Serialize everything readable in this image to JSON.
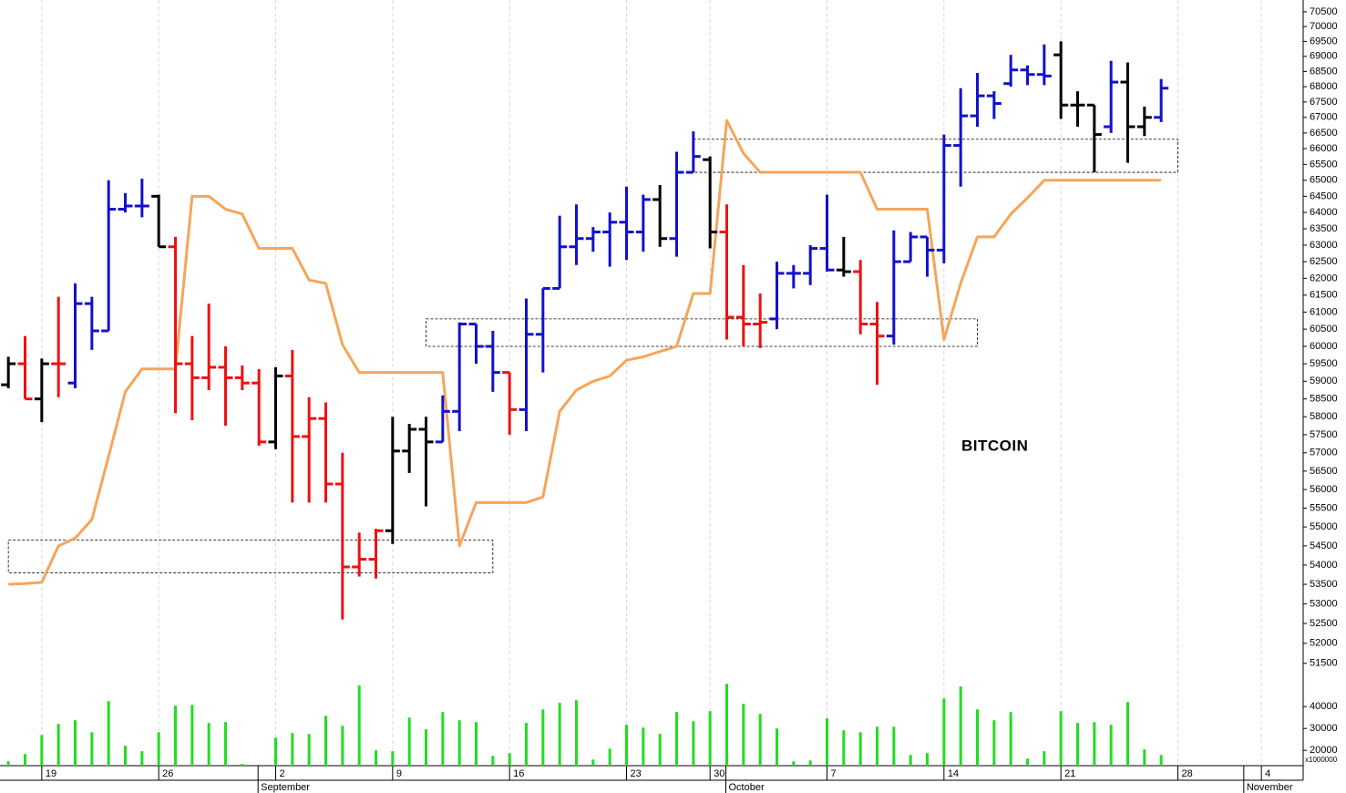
{
  "chart_data": {
    "type": "ohlc",
    "title": "BITCOIN",
    "log_scale": true,
    "ylim": [
      51000,
      70900
    ],
    "yticks": [
      51500,
      52000,
      52500,
      53000,
      53500,
      54000,
      54500,
      55000,
      55500,
      56000,
      56500,
      57000,
      57500,
      58000,
      58500,
      59000,
      59500,
      60000,
      60500,
      61000,
      61500,
      62000,
      62500,
      63000,
      63500,
      64000,
      64500,
      65000,
      65500,
      66000,
      66500,
      67000,
      67500,
      68000,
      68500,
      69000,
      69500,
      70000,
      70500
    ],
    "categories": [
      null,
      null,
      "19",
      null,
      null,
      null,
      null,
      null,
      null,
      "26",
      null,
      null,
      null,
      null,
      null,
      null,
      "2",
      null,
      null,
      null,
      null,
      null,
      null,
      "9",
      null,
      null,
      null,
      null,
      null,
      null,
      "16",
      null,
      null,
      null,
      null,
      null,
      null,
      "23",
      null,
      null,
      null,
      null,
      "30",
      null,
      null,
      null,
      null,
      null,
      null,
      "7",
      null,
      null,
      null,
      null,
      null,
      null,
      "14",
      null,
      null,
      null,
      null,
      null,
      null,
      "21",
      null,
      null,
      null,
      null,
      null,
      null,
      "28",
      null,
      null,
      null,
      null,
      "4",
      null,
      null
    ],
    "months": [
      null,
      null,
      null,
      null,
      null,
      null,
      null,
      null,
      null,
      null,
      null,
      null,
      null,
      null,
      null,
      "September",
      null,
      null,
      null,
      null,
      null,
      null,
      null,
      null,
      null,
      null,
      null,
      null,
      null,
      null,
      null,
      null,
      null,
      null,
      null,
      null,
      null,
      null,
      null,
      null,
      null,
      null,
      null,
      "October",
      null,
      null,
      null,
      null,
      null,
      null,
      null,
      null,
      null,
      null,
      null,
      null,
      null,
      null,
      null,
      null,
      null,
      null,
      null,
      null,
      null,
      null,
      null,
      null,
      null,
      null,
      null,
      null,
      null,
      null,
      "November",
      null,
      null,
      null
    ],
    "open": [
      58900,
      59500,
      58500,
      59500,
      58950,
      61250,
      60450,
      64100,
      64200,
      64500,
      62950,
      59500,
      59100,
      59400,
      59100,
      58950,
      57300,
      59150,
      57450,
      57950,
      56150,
      53950,
      54150,
      54900,
      57050,
      57650,
      57300,
      58150,
      60650,
      60000,
      59250,
      58200,
      60350,
      61700,
      62950,
      63200,
      63400,
      63700,
      63400,
      64400,
      63200,
      65250,
      65650,
      63400,
      60850,
      60650,
      60800,
      62150,
      62150,
      62900,
      62250,
      62200,
      60650,
      60300,
      62500,
      63250,
      62850,
      66100,
      67050,
      67700,
      68100,
      68550,
      68400,
      69050,
      67400,
      67400,
      66700,
      68150,
      66700,
      67000,
      null,
      null,
      null,
      null,
      null,
      null,
      null,
      null
    ],
    "high": [
      59700,
      60300,
      59650,
      61450,
      61850,
      61450,
      65000,
      64600,
      65050,
      64550,
      63250,
      60300,
      61250,
      60000,
      59450,
      59350,
      59400,
      59900,
      58550,
      58400,
      57000,
      54850,
      54950,
      58000,
      57800,
      58000,
      58600,
      60700,
      60650,
      60450,
      59250,
      61400,
      61700,
      63900,
      64250,
      63550,
      64000,
      64800,
      64550,
      64850,
      65900,
      66550,
      65750,
      64250,
      62400,
      61550,
      62500,
      62400,
      63000,
      64550,
      63250,
      62550,
      61300,
      63450,
      63400,
      63250,
      66450,
      67950,
      68450,
      67850,
      69050,
      68700,
      69400,
      69500,
      67850,
      67400,
      68850,
      68800,
      67350,
      68250,
      null,
      null,
      null,
      null,
      null,
      null,
      null,
      null
    ],
    "low": [
      58800,
      58500,
      57850,
      58550,
      58800,
      59900,
      60450,
      64000,
      63850,
      62950,
      58100,
      57900,
      58750,
      57750,
      58750,
      57200,
      57100,
      55650,
      55650,
      55650,
      52600,
      53700,
      53650,
      54550,
      56450,
      55550,
      57300,
      57600,
      59500,
      58700,
      57500,
      57600,
      59250,
      61700,
      62400,
      62800,
      62350,
      62550,
      62800,
      62950,
      62650,
      65250,
      62900,
      60200,
      60000,
      59950,
      60500,
      61700,
      61800,
      62200,
      62050,
      60350,
      58900,
      60050,
      62500,
      62050,
      62450,
      64800,
      66700,
      66950,
      68000,
      68050,
      68050,
      66950,
      66700,
      65250,
      66500,
      65550,
      66400,
      66850,
      null,
      null,
      null,
      null,
      null,
      null,
      null,
      null
    ],
    "close": [
      59500,
      58500,
      59500,
      59500,
      61250,
      60450,
      64100,
      64200,
      64200,
      62950,
      59500,
      59100,
      59400,
      59100,
      58950,
      57300,
      59150,
      57450,
      57950,
      56150,
      53950,
      54150,
      54900,
      57050,
      57650,
      57300,
      58150,
      60650,
      60000,
      59250,
      58200,
      60350,
      61700,
      62950,
      63200,
      63400,
      63700,
      63400,
      64400,
      63200,
      65250,
      65750,
      63400,
      60850,
      60650,
      60700,
      62150,
      62150,
      62900,
      62250,
      62200,
      60650,
      60300,
      62500,
      63250,
      62850,
      66100,
      67050,
      67700,
      67450,
      68550,
      68400,
      68350,
      67400,
      67400,
      66450,
      68150,
      66700,
      67000,
      67950,
      null,
      null,
      null,
      null,
      null,
      null,
      null,
      null
    ],
    "bar_colors": [
      "#000000",
      "#ee1111",
      "#000000",
      "#ee1111",
      "#1111cc",
      "#1111cc",
      "#1111cc",
      "#1111cc",
      "#1111cc",
      "#000000",
      "#ee1111",
      "#ee1111",
      "#ee1111",
      "#ee1111",
      "#ee1111",
      "#ee1111",
      "#000000",
      "#ee1111",
      "#ee1111",
      "#ee1111",
      "#ee1111",
      "#ee1111",
      "#ee1111",
      "#000000",
      "#000000",
      "#000000",
      "#1111cc",
      "#1111cc",
      "#1111cc",
      "#1111cc",
      "#ee1111",
      "#1111cc",
      "#1111cc",
      "#1111cc",
      "#1111cc",
      "#1111cc",
      "#1111cc",
      "#1111cc",
      "#1111cc",
      "#000000",
      "#1111cc",
      "#1111cc",
      "#000000",
      "#ee1111",
      "#ee1111",
      "#ee1111",
      "#1111cc",
      "#1111cc",
      "#1111cc",
      "#1111cc",
      "#000000",
      "#ee1111",
      "#ee1111",
      "#1111cc",
      "#1111cc",
      "#1111cc",
      "#1111cc",
      "#1111cc",
      "#1111cc",
      "#1111cc",
      "#1111cc",
      "#1111cc",
      "#1111cc",
      "#000000",
      "#000000",
      "#000000",
      "#1111cc",
      "#000000",
      "#000000",
      "#1111cc",
      null,
      null,
      null,
      null,
      null,
      null,
      null,
      null
    ],
    "line": {
      "color": "#f5a55a",
      "values": [
        53500,
        53520,
        53550,
        54500,
        54700,
        55200,
        56900,
        58700,
        59350,
        59350,
        59350,
        64500,
        64500,
        64100,
        63950,
        62900,
        62900,
        62900,
        61950,
        61850,
        60050,
        59250,
        59250,
        59250,
        59250,
        59250,
        59250,
        54500,
        55650,
        55650,
        55650,
        55650,
        55800,
        58150,
        58750,
        59000,
        59150,
        59600,
        59700,
        59850,
        60000,
        61550,
        61550,
        66900,
        65850,
        65250,
        65250,
        65250,
        65250,
        65250,
        65250,
        65250,
        64100,
        64100,
        64100,
        64100,
        60200,
        61850,
        63250,
        63250,
        63950,
        64450,
        65000,
        65000,
        65000,
        65000,
        65000,
        65000,
        65000,
        65000,
        null,
        null,
        null,
        null,
        null,
        null,
        null,
        null
      ]
    },
    "zones": [
      {
        "start": 0,
        "end": 29,
        "low": 53800,
        "high": 54650
      },
      {
        "start": 25,
        "end": 58,
        "low": 60000,
        "high": 60800
      },
      {
        "start": 41,
        "end": 70,
        "low": 65250,
        "high": 66300
      }
    ],
    "volume": {
      "color": "#22dd22",
      "unit_label": "x1000000",
      "ylim": [
        13000,
        50500
      ],
      "yticks": [
        40000,
        30000,
        20000
      ],
      "values": [
        15000,
        18300,
        27000,
        32100,
        33750,
        28300,
        42500,
        22100,
        19600,
        28300,
        40400,
        40800,
        32500,
        32900,
        13800,
        13000,
        25800,
        27900,
        27500,
        35800,
        31250,
        49600,
        20000,
        19600,
        35000,
        29600,
        37500,
        33750,
        32900,
        17500,
        18750,
        32500,
        38750,
        41700,
        42900,
        15800,
        20800,
        31700,
        30400,
        27500,
        37500,
        33300,
        37900,
        50400,
        41250,
        36700,
        30000,
        15000,
        15400,
        34600,
        29200,
        28300,
        30800,
        30800,
        17900,
        18750,
        43750,
        49200,
        38750,
        33750,
        37500,
        16250,
        19600,
        37900,
        32500,
        32900,
        31700,
        42100,
        20400,
        17900,
        null,
        null,
        null,
        null,
        null,
        null,
        null,
        null
      ]
    }
  }
}
